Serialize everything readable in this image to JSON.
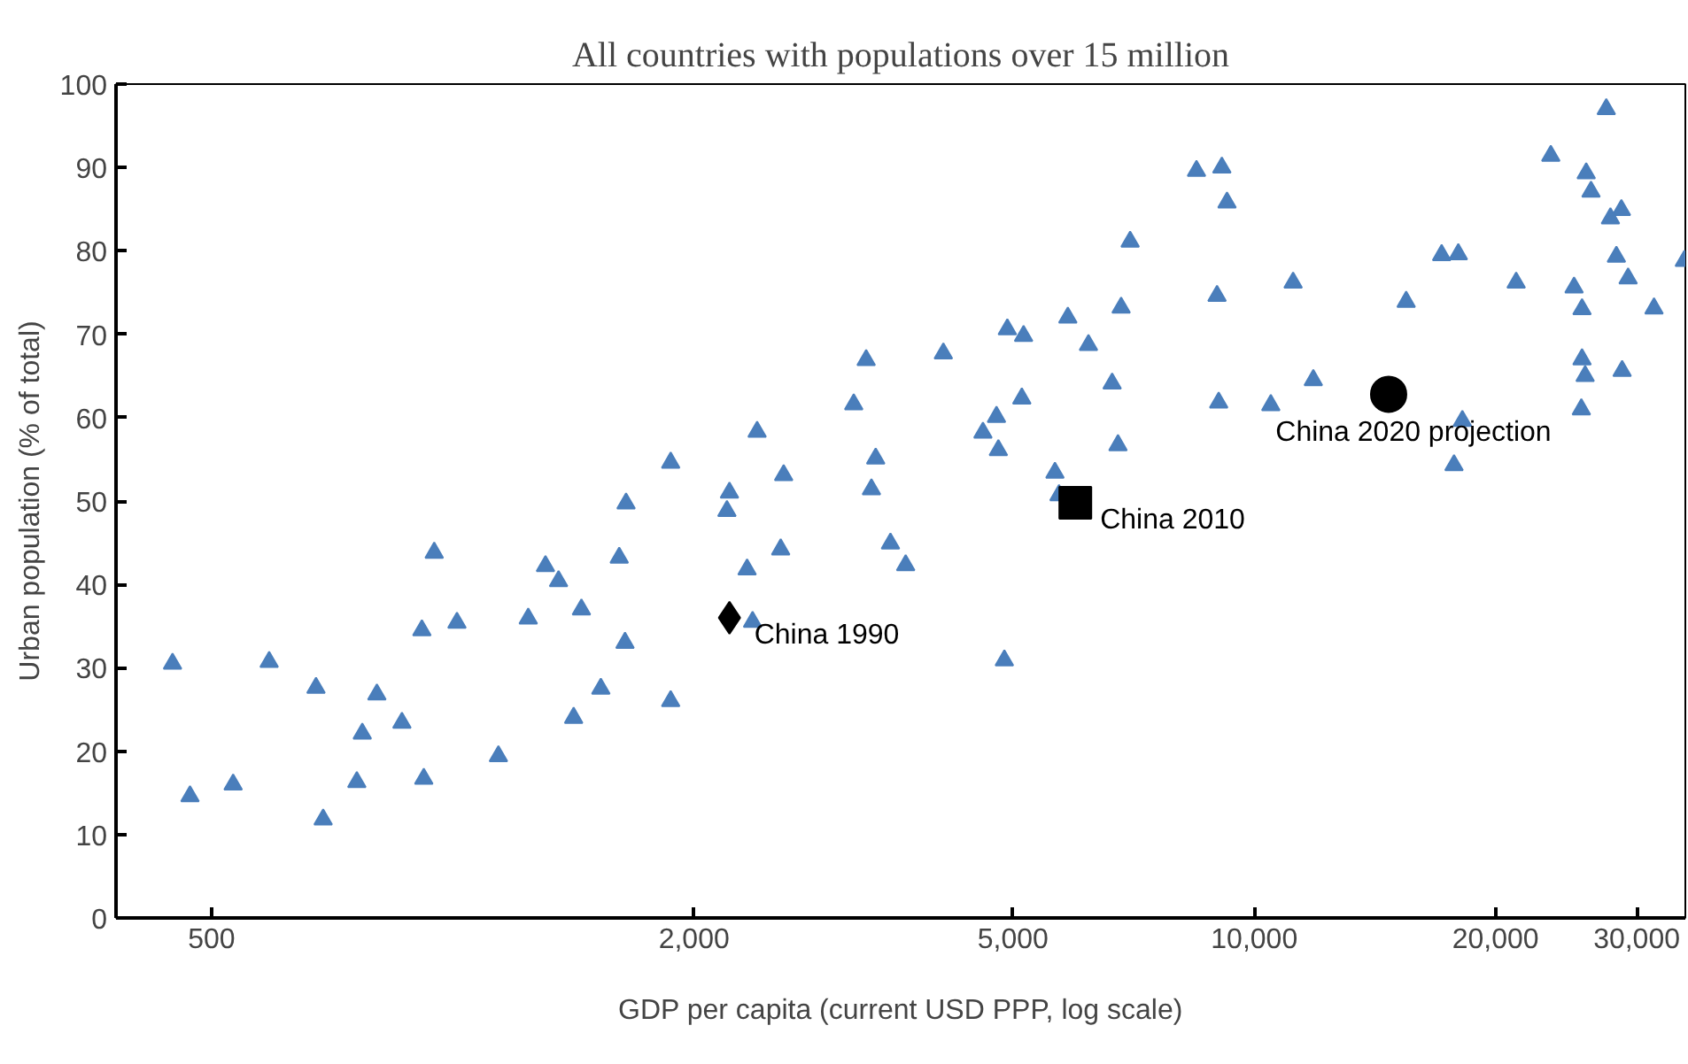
{
  "chart_data": {
    "type": "scatter",
    "title": "All countries with populations over 15 million",
    "xlabel": "GDP per capita (current USD PPP, log scale)",
    "ylabel": "Urban population (% of total)",
    "log": "x",
    "grid": false,
    "xlim": [
      380,
      34500
    ],
    "xticks": [
      500,
      {
        "value": 2000,
        "label": "2,000"
      },
      {
        "value": 5000,
        "label": "5,000"
      },
      {
        "value": 10000,
        "label": "10,000"
      },
      {
        "value": 20000,
        "label": "20,000"
      },
      {
        "value": 30000,
        "label": "30,000"
      }
    ],
    "ylim": [
      0,
      100
    ],
    "yticks": [
      0,
      10,
      20,
      30,
      40,
      50,
      60,
      70,
      80,
      90,
      100
    ],
    "series": [
      {
        "color": "#4a7ebb",
        "marker": "triangle",
        "x": [
          447,
          470,
          532,
          590,
          675,
          689,
          759,
          771,
          804,
          864,
          915,
          920,
          948,
          1012,
          1140,
          1242,
          1305,
          1355,
          1447,
          1530,
          1415,
          1613,
          1640,
          1645,
          1870,
          1870,
          2366,
          2329,
          2198,
          2214,
          2565,
          2587,
          2397,
          3279,
          3164,
          3370,
          3329,
          3516,
          3673,
          4093,
          4877,
          4919,
          5154,
          5128,
          4768,
          4586,
          4794,
          5640,
          5706,
          8470,
          9246,
          7000,
          11180,
          8985,
          6821,
          5853,
          6210,
          6647,
          11848,
          9028,
          10486,
          6760,
          27490,
          23440,
          25950,
          26310,
          28710,
          27820,
          9110,
          17130,
          17970,
          28300,
          34400,
          29270,
          21220,
          25060,
          15470,
          25640,
          31530,
          25640,
          25870,
          28770,
          25590,
          18180,
          17750
        ],
        "values": [
          30.5,
          14.6,
          16.0,
          30.7,
          27.6,
          11.8,
          16.3,
          22.1,
          26.8,
          23.4,
          34.5,
          16.7,
          43.8,
          35.4,
          19.4,
          35.9,
          42.2,
          40.4,
          37.0,
          27.5,
          24.0,
          43.2,
          33.0,
          49.7,
          26.0,
          54.6,
          35.5,
          41.8,
          48.8,
          51.0,
          44.2,
          53.1,
          58.3,
          66.9,
          61.6,
          55.1,
          51.4,
          44.9,
          42.3,
          67.7,
          30.9,
          70.6,
          69.8,
          62.3,
          60.1,
          58.2,
          56.1,
          53.4,
          50.7,
          89.6,
          85.8,
          81.1,
          76.2,
          74.6,
          73.2,
          72.0,
          68.7,
          64.1,
          64.5,
          61.8,
          61.5,
          56.7,
          97.0,
          91.4,
          89.3,
          87.1,
          84.9,
          83.9,
          90.0,
          79.5,
          79.6,
          79.3,
          78.8,
          76.7,
          76.2,
          75.6,
          73.9,
          73.0,
          73.1,
          67.0,
          65.0,
          65.6,
          61.0,
          59.6,
          54.3
        ]
      },
      {
        "name": "China 1990",
        "color": "#000000",
        "marker": "diamond",
        "x": [
          2214
        ],
        "values": [
          36.0
        ]
      },
      {
        "name": "China 2010",
        "color": "#000000",
        "marker": "square",
        "x": [
          5980
        ],
        "values": [
          49.8
        ]
      },
      {
        "name": "China 2020 projection",
        "color": "#000000",
        "marker": "circle",
        "x": [
          14710
        ],
        "values": [
          62.8
        ]
      }
    ]
  }
}
